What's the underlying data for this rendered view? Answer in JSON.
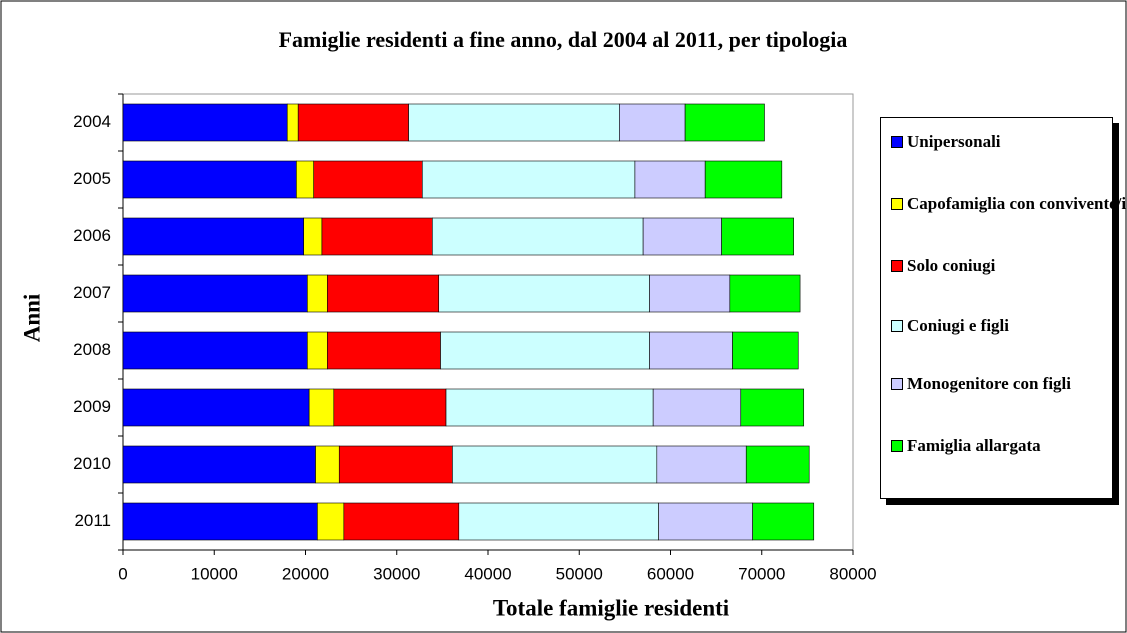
{
  "chart_data": {
    "type": "stacked-bar-horizontal",
    "title": "Famiglie residenti a fine anno, dal 2004 al 2011, per tipologia",
    "x_label": "Totale famiglie residenti",
    "y_label": "Anni",
    "categories": [
      "2004",
      "2005",
      "2006",
      "2007",
      "2008",
      "2009",
      "2010",
      "2011"
    ],
    "series": [
      {
        "name": "Unipersonali",
        "color": "#0000ff",
        "values": [
          18000,
          19000,
          19800,
          20200,
          20200,
          20400,
          21100,
          21300
        ]
      },
      {
        "name": "Capofamiglia con convivente/i",
        "color": "#ffff00",
        "values": [
          1200,
          1900,
          2000,
          2200,
          2200,
          2700,
          2600,
          2900
        ]
      },
      {
        "name": "Solo coniugi",
        "color": "#ff0000",
        "values": [
          12100,
          11900,
          12100,
          12200,
          12400,
          12300,
          12400,
          12600
        ]
      },
      {
        "name": "Coniugi e figli",
        "color": "#ccffff",
        "values": [
          23100,
          23300,
          23100,
          23100,
          22900,
          22700,
          22400,
          21900
        ]
      },
      {
        "name": "Monogenitore con figli",
        "color": "#ccccff",
        "values": [
          7200,
          7700,
          8600,
          8800,
          9100,
          9600,
          9800,
          10300
        ]
      },
      {
        "name": "Famiglia allargata",
        "color": "#00ff00",
        "values": [
          8700,
          8400,
          7900,
          7700,
          7200,
          6900,
          6900,
          6700
        ]
      }
    ],
    "xlim": [
      0,
      80000
    ],
    "xticks": [
      0,
      10000,
      20000,
      30000,
      40000,
      50000,
      60000,
      70000,
      80000
    ],
    "legend": "right"
  }
}
